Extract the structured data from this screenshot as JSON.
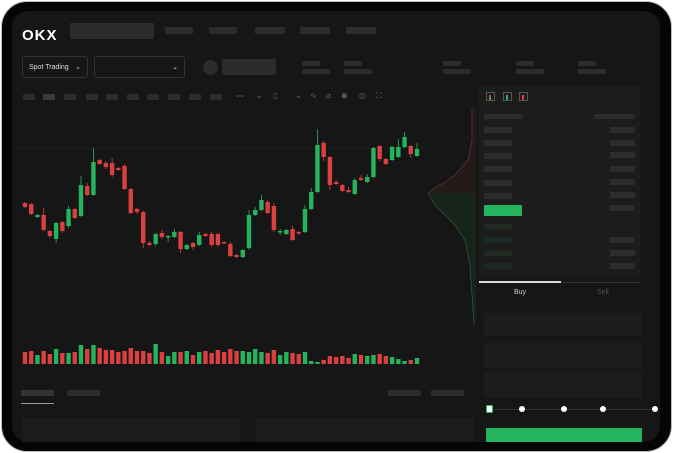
{
  "header": {
    "logo": "OKX"
  },
  "toolbar": {
    "market_type": "Spot Trading",
    "pair_select": ""
  },
  "chart_icons": [
    "indicator-icon",
    "compare-icon",
    "ohlc-icon",
    "line-icon",
    "ruler-icon",
    "camera-icon",
    "settings-icon",
    "fullscreen-icon"
  ],
  "orderbook": {
    "view_icons": [
      "both-sides-icon",
      "bids-only-icon",
      "asks-only-icon"
    ]
  },
  "order_form": {
    "buy_tab": "Buy",
    "sell_tab": "Sell",
    "slider_percent": 0
  },
  "colors": {
    "up": "#25b45e",
    "down": "#d9403f",
    "background": "#161616",
    "accent": "#25b45e"
  },
  "chart_data": {
    "type": "candlestick",
    "fields": [
      "open",
      "close",
      "high",
      "low"
    ],
    "candles": [
      [
        97,
        93,
        98,
        92
      ],
      [
        96,
        86,
        97,
        85
      ],
      [
        83,
        85,
        86,
        82
      ],
      [
        85,
        70,
        92,
        69
      ],
      [
        69,
        64,
        70,
        62
      ],
      [
        61,
        77,
        78,
        57
      ],
      [
        78,
        69,
        79,
        67
      ],
      [
        74,
        91,
        94,
        72
      ],
      [
        91,
        82,
        92,
        81
      ],
      [
        84,
        115,
        124,
        83
      ],
      [
        114,
        105,
        117,
        104
      ],
      [
        105,
        138,
        152,
        104
      ],
      [
        140,
        136,
        141,
        135
      ],
      [
        137,
        133,
        139,
        131
      ],
      [
        137,
        125,
        142,
        123
      ],
      [
        132,
        130,
        133,
        129
      ],
      [
        134,
        111,
        136,
        110
      ],
      [
        111,
        87,
        112,
        86
      ],
      [
        91,
        88,
        92,
        86
      ],
      [
        88,
        57,
        89,
        52
      ],
      [
        57,
        55,
        59,
        54
      ],
      [
        56,
        66,
        67,
        54
      ],
      [
        67,
        63,
        70,
        61
      ],
      [
        63,
        64,
        65,
        58
      ],
      [
        63,
        68,
        71,
        62
      ],
      [
        68,
        51,
        69,
        47
      ],
      [
        51,
        55,
        56,
        50
      ],
      [
        57,
        53,
        58,
        50
      ],
      [
        55,
        65,
        68,
        54
      ],
      [
        66,
        64,
        67,
        63
      ],
      [
        66,
        55,
        68,
        53
      ],
      [
        66,
        55,
        67,
        53
      ],
      [
        58,
        57,
        59,
        56
      ],
      [
        56,
        44,
        58,
        43
      ],
      [
        45,
        43,
        46,
        42
      ],
      [
        43,
        50,
        51,
        42
      ],
      [
        52,
        85,
        90,
        50
      ],
      [
        85,
        90,
        93,
        84
      ],
      [
        90,
        100,
        105,
        89
      ],
      [
        98,
        87,
        100,
        86
      ],
      [
        94,
        70,
        97,
        68
      ],
      [
        68,
        69,
        71,
        65
      ],
      [
        66,
        70,
        71,
        65
      ],
      [
        71,
        60,
        74,
        59
      ],
      [
        68,
        67,
        69,
        65
      ],
      [
        68,
        91,
        95,
        67
      ],
      [
        91,
        108,
        112,
        90
      ],
      [
        108,
        155,
        171,
        107
      ],
      [
        157,
        143,
        159,
        139
      ],
      [
        143,
        115,
        144,
        110
      ],
      [
        118,
        116,
        120,
        115
      ],
      [
        115,
        109,
        116,
        108
      ],
      [
        110,
        108,
        113,
        107
      ],
      [
        106,
        120,
        122,
        105
      ],
      [
        122,
        120,
        125,
        119
      ],
      [
        118,
        123,
        126,
        117
      ],
      [
        123,
        152,
        153,
        122
      ],
      [
        154,
        141,
        155,
        139
      ],
      [
        141,
        136,
        142,
        135
      ],
      [
        140,
        153,
        154,
        139
      ],
      [
        143,
        153,
        161,
        142
      ],
      [
        153,
        163,
        168,
        152
      ],
      [
        154,
        146,
        155,
        142
      ],
      [
        144,
        151,
        157,
        143
      ]
    ],
    "volumes": [
      12,
      13,
      9,
      13,
      10,
      15,
      11,
      11,
      12,
      19,
      15,
      19,
      16,
      14,
      14,
      12,
      13,
      16,
      13,
      13,
      11,
      20,
      12,
      8,
      12,
      12,
      13,
      9,
      12,
      13,
      11,
      14,
      12,
      15,
      13,
      13,
      12,
      15,
      12,
      11,
      14,
      9,
      12,
      11,
      10,
      12,
      3,
      2,
      4,
      8,
      7,
      8,
      6,
      10,
      9,
      8,
      9,
      10,
      8,
      7,
      5,
      3,
      4,
      6
    ]
  }
}
